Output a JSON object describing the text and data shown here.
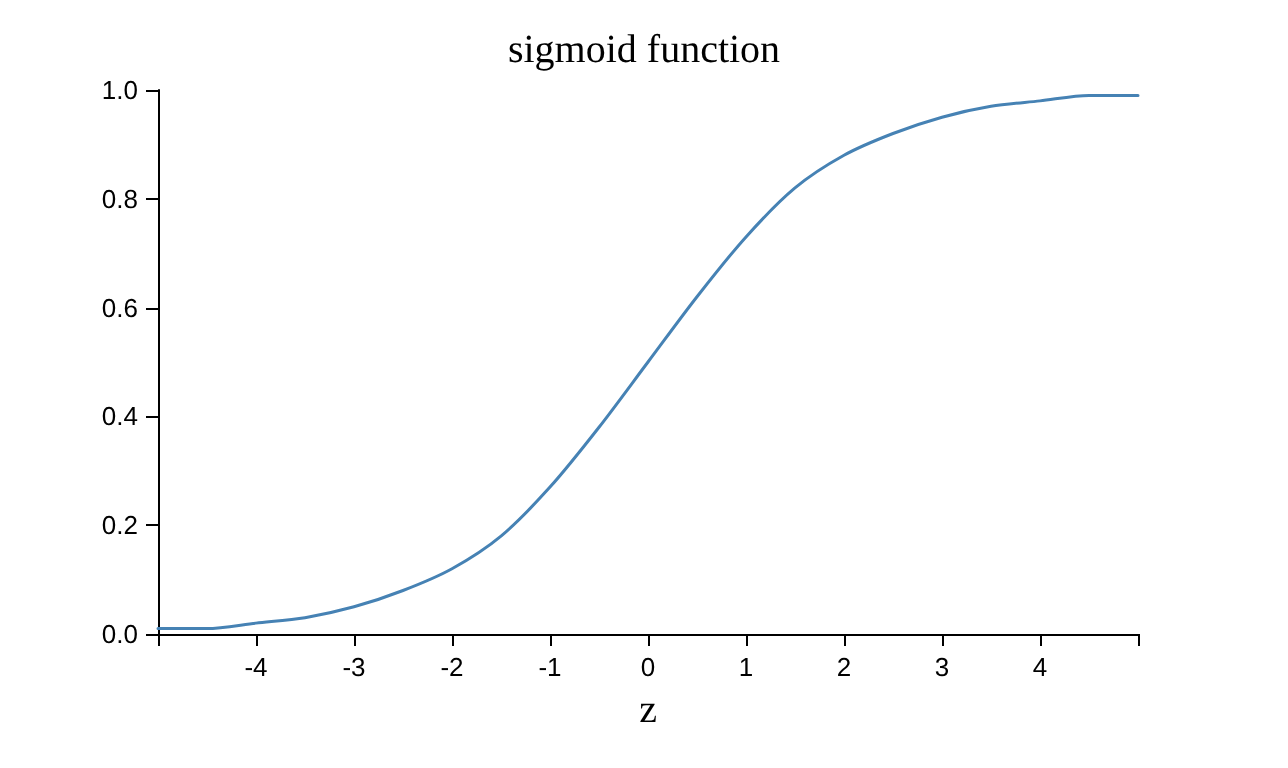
{
  "chart_data": {
    "type": "line",
    "title": "sigmoid function",
    "xlabel": "z",
    "x": [
      -5,
      -4.5,
      -4,
      -3.5,
      -3,
      -2.5,
      -2,
      -1.5,
      -1,
      -0.5,
      0,
      0.5,
      1,
      1.5,
      2,
      2.5,
      3,
      3.5,
      4,
      4.5,
      5
    ],
    "series": [
      {
        "color": "#4682b4",
        "values": [
          0.01,
          0.01,
          0.02,
          0.03,
          0.05,
          0.08,
          0.12,
          0.18,
          0.27,
          0.38,
          0.5,
          0.62,
          0.73,
          0.82,
          0.88,
          0.92,
          0.95,
          0.97,
          0.98,
          0.99,
          0.99
        ]
      }
    ],
    "xlim": [
      -5,
      5
    ],
    "xticks": [
      {
        "value": -5,
        "label": null
      },
      -4,
      -3,
      -2,
      -1,
      0,
      1,
      2,
      3,
      4,
      {
        "value": 5,
        "label": null
      }
    ],
    "ylim": [
      0,
      1
    ],
    "yticks": [
      {
        "value": 0,
        "label": "0.0"
      },
      {
        "value": 0.2,
        "label": "0.2"
      },
      {
        "value": 0.4,
        "label": "0.4"
      },
      {
        "value": 0.6,
        "label": "0.6"
      },
      {
        "value": 0.8,
        "label": "0.8"
      },
      {
        "value": 1,
        "label": "1.0"
      }
    ],
    "grid": false,
    "marker": "none",
    "line_style": "solid"
  }
}
